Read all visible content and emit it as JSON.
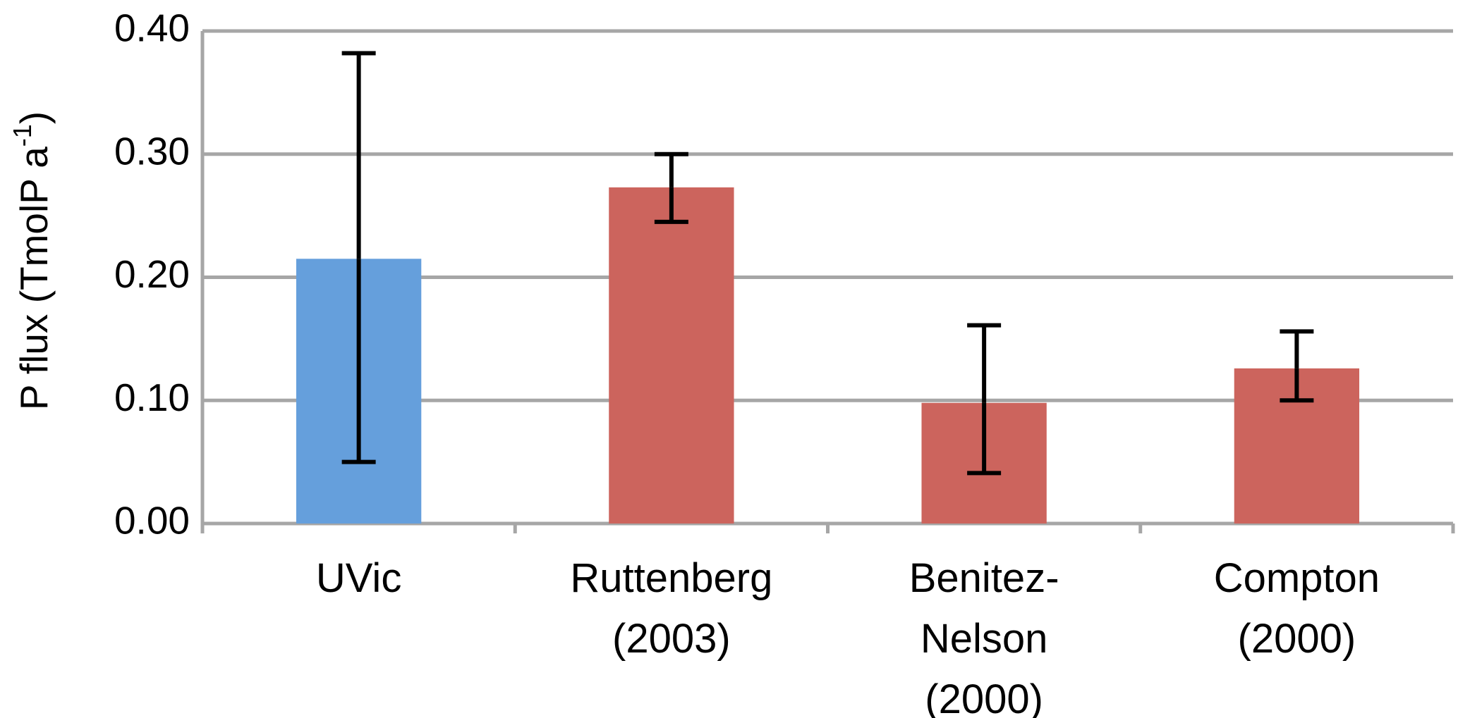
{
  "chart_data": {
    "type": "bar",
    "y_label": {
      "text": "P flux (TmolP a",
      "superscript": "-1",
      "suffix": ")"
    },
    "categories": [
      "UVic",
      "Ruttenberg\n(2003)",
      "Benitez-\nNelson\n(2000)",
      "Compton\n(2000)"
    ],
    "values": [
      0.215,
      0.273,
      0.098,
      0.126
    ],
    "error_minus": [
      0.165,
      0.028,
      0.057,
      0.026
    ],
    "error_plus": [
      0.167,
      0.027,
      0.063,
      0.03
    ],
    "colors": [
      "#659fdc",
      "#cc645d",
      "#cc645d",
      "#cc645d"
    ],
    "error_color": "#000000",
    "ylim": [
      0,
      0.4
    ],
    "yticks": [
      {
        "value": 0,
        "label": "0.00"
      },
      {
        "value": 0.1,
        "label": "0.10"
      },
      {
        "value": 0.2,
        "label": "0.20"
      },
      {
        "value": 0.3,
        "label": "0.30"
      },
      {
        "value": 0.4,
        "label": "0.40"
      }
    ],
    "grid": true
  }
}
